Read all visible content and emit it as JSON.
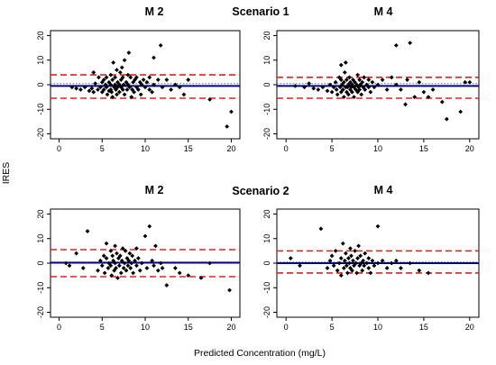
{
  "chart_data": {
    "type": "scatter",
    "ylabel": "IRES",
    "xlabel": "Predicted Concentration (mg/L)",
    "scenarios": [
      {
        "label": "Scenario 1"
      },
      {
        "label": "Scenario 2"
      }
    ],
    "panels": [
      {
        "title": "M 2",
        "scenario": 1,
        "xlim": [
          -1,
          21
        ],
        "ylim": [
          -22,
          22
        ],
        "xticks": [
          0,
          5,
          10,
          15,
          20
        ],
        "yticks": [
          -20,
          -10,
          0,
          10,
          20
        ],
        "lines": {
          "mean": -0.5,
          "upper_limit": 4.0,
          "lower_limit": -5.5,
          "reference": 0
        },
        "colors": {
          "points": "#000000",
          "mean": "#00008b",
          "limits": "#dd2222",
          "reference": "#4a6fd0"
        },
        "points": [
          [
            1.5,
            -1
          ],
          [
            2.0,
            -1.5
          ],
          [
            2.5,
            -2
          ],
          [
            3.0,
            -1
          ],
          [
            3.5,
            -2.5
          ],
          [
            3.8,
            -1.5
          ],
          [
            4.0,
            -3
          ],
          [
            4.2,
            0.5
          ],
          [
            4.5,
            -2
          ],
          [
            4.0,
            5
          ],
          [
            4.6,
            3
          ],
          [
            4.8,
            -1
          ],
          [
            5.0,
            1
          ],
          [
            5.0,
            -3
          ],
          [
            5.2,
            2
          ],
          [
            5.2,
            -2
          ],
          [
            5.4,
            0
          ],
          [
            5.5,
            -1
          ],
          [
            5.5,
            3
          ],
          [
            5.6,
            -4
          ],
          [
            5.8,
            -2.5
          ],
          [
            5.8,
            1
          ],
          [
            6.0,
            0
          ],
          [
            6.0,
            -2
          ],
          [
            6.0,
            4
          ],
          [
            6.1,
            -3
          ],
          [
            6.2,
            2
          ],
          [
            6.2,
            -5
          ],
          [
            6.3,
            9
          ],
          [
            6.4,
            -1
          ],
          [
            6.5,
            0
          ],
          [
            6.5,
            3
          ],
          [
            6.6,
            -2
          ],
          [
            6.7,
            6
          ],
          [
            6.7,
            -4
          ],
          [
            6.8,
            1
          ],
          [
            6.8,
            -1
          ],
          [
            7.0,
            -3
          ],
          [
            7.0,
            0
          ],
          [
            7.1,
            5
          ],
          [
            7.2,
            -1
          ],
          [
            7.2,
            2
          ],
          [
            7.3,
            7
          ],
          [
            7.4,
            -2
          ],
          [
            7.4,
            3
          ],
          [
            7.5,
            0
          ],
          [
            7.6,
            -4
          ],
          [
            7.6,
            10
          ],
          [
            7.8,
            1
          ],
          [
            7.9,
            -2
          ],
          [
            8.0,
            4
          ],
          [
            8.0,
            0
          ],
          [
            8.1,
            13
          ],
          [
            8.2,
            -1
          ],
          [
            8.3,
            3
          ],
          [
            8.4,
            -5
          ],
          [
            8.5,
            -2
          ],
          [
            8.6,
            1
          ],
          [
            8.7,
            -3
          ],
          [
            8.8,
            2
          ],
          [
            9.0,
            -1
          ],
          [
            9.0,
            3
          ],
          [
            9.2,
            -2
          ],
          [
            9.4,
            1
          ],
          [
            9.5,
            -4
          ],
          [
            9.6,
            0
          ],
          [
            9.8,
            2
          ],
          [
            10.0,
            -1
          ],
          [
            10.2,
            1
          ],
          [
            10.5,
            -2
          ],
          [
            10.5,
            3
          ],
          [
            10.8,
            -3
          ],
          [
            11.0,
            11
          ],
          [
            11.0,
            0
          ],
          [
            11.5,
            2
          ],
          [
            11.8,
            16
          ],
          [
            12.0,
            -1
          ],
          [
            12.5,
            2
          ],
          [
            13.0,
            -2
          ],
          [
            13.5,
            0
          ],
          [
            14.0,
            -1
          ],
          [
            14.5,
            -4
          ],
          [
            15.0,
            2
          ],
          [
            17.5,
            -6
          ],
          [
            19.5,
            -17
          ],
          [
            20.0,
            -11
          ]
        ]
      },
      {
        "title": "M 4",
        "scenario": 1,
        "xlim": [
          -1,
          21
        ],
        "ylim": [
          -22,
          22
        ],
        "xticks": [
          0,
          5,
          10,
          15,
          20
        ],
        "yticks": [
          -20,
          -10,
          0,
          10,
          20
        ],
        "lines": {
          "mean": -0.5,
          "upper_limit": 3.0,
          "lower_limit": -5.5,
          "reference": 0
        },
        "colors": {
          "points": "#000000",
          "mean": "#00008b",
          "limits": "#dd2222",
          "reference": "#4a6fd0"
        },
        "points": [
          [
            1.0,
            -0.5
          ],
          [
            2.0,
            -1
          ],
          [
            2.5,
            0.5
          ],
          [
            3.0,
            -1.5
          ],
          [
            3.5,
            -2
          ],
          [
            4.0,
            -1
          ],
          [
            4.5,
            -2.5
          ],
          [
            4.8,
            0
          ],
          [
            5.0,
            -3
          ],
          [
            5.2,
            -1
          ],
          [
            5.4,
            1
          ],
          [
            5.5,
            -2
          ],
          [
            5.6,
            -4
          ],
          [
            5.8,
            3
          ],
          [
            5.9,
            -1
          ],
          [
            6.0,
            2
          ],
          [
            6.0,
            -3
          ],
          [
            6.0,
            8
          ],
          [
            6.1,
            0
          ],
          [
            6.2,
            -2
          ],
          [
            6.3,
            -5
          ],
          [
            6.3,
            1
          ],
          [
            6.4,
            5
          ],
          [
            6.5,
            -1
          ],
          [
            6.5,
            9
          ],
          [
            6.6,
            -3
          ],
          [
            6.6,
            2
          ],
          [
            6.7,
            -1
          ],
          [
            6.8,
            0
          ],
          [
            6.8,
            -4
          ],
          [
            6.9,
            3
          ],
          [
            7.0,
            -2
          ],
          [
            7.0,
            1
          ],
          [
            7.1,
            -1
          ],
          [
            7.2,
            0
          ],
          [
            7.2,
            -3
          ],
          [
            7.3,
            2
          ],
          [
            7.4,
            -1
          ],
          [
            7.4,
            -5
          ],
          [
            7.5,
            1
          ],
          [
            7.6,
            -2
          ],
          [
            7.7,
            0
          ],
          [
            7.8,
            -3
          ],
          [
            7.8,
            4
          ],
          [
            7.9,
            -1
          ],
          [
            8.0,
            2
          ],
          [
            8.0,
            -2
          ],
          [
            8.1,
            0
          ],
          [
            8.2,
            -4
          ],
          [
            8.3,
            1
          ],
          [
            8.4,
            -1
          ],
          [
            8.5,
            3
          ],
          [
            8.6,
            -2
          ],
          [
            8.8,
            0
          ],
          [
            9.0,
            -1
          ],
          [
            9.0,
            2
          ],
          [
            9.2,
            -3
          ],
          [
            9.4,
            1
          ],
          [
            9.6,
            -1
          ],
          [
            10.0,
            0
          ],
          [
            10.5,
            2
          ],
          [
            11.0,
            -2
          ],
          [
            11.5,
            3
          ],
          [
            12.0,
            16
          ],
          [
            12.0,
            0
          ],
          [
            12.5,
            -2
          ],
          [
            13.0,
            -8
          ],
          [
            13.2,
            2
          ],
          [
            13.5,
            17
          ],
          [
            14.0,
            -5
          ],
          [
            14.5,
            1
          ],
          [
            15.0,
            -3
          ],
          [
            15.5,
            -5
          ],
          [
            16.0,
            -2
          ],
          [
            17.0,
            -7
          ],
          [
            17.5,
            -14
          ],
          [
            19.0,
            -11
          ],
          [
            19.5,
            1
          ],
          [
            20.0,
            1
          ]
        ]
      },
      {
        "title": "M 2",
        "scenario": 2,
        "xlim": [
          -1,
          21
        ],
        "ylim": [
          -22,
          22
        ],
        "xticks": [
          0,
          5,
          10,
          15,
          20
        ],
        "yticks": [
          -20,
          -10,
          0,
          10,
          20
        ],
        "lines": {
          "mean": 0.2,
          "upper_limit": 5.5,
          "lower_limit": -5.5,
          "reference": 0
        },
        "colors": {
          "points": "#000000",
          "mean": "#00008b",
          "limits": "#dd2222",
          "reference": "#4a6fd0"
        },
        "points": [
          [
            0.8,
            0
          ],
          [
            1.2,
            -1
          ],
          [
            2.0,
            4
          ],
          [
            2.8,
            -2
          ],
          [
            3.3,
            13
          ],
          [
            4.5,
            -3
          ],
          [
            4.8,
            1
          ],
          [
            5.0,
            -1
          ],
          [
            5.2,
            3
          ],
          [
            5.3,
            -4
          ],
          [
            5.5,
            2
          ],
          [
            5.5,
            8
          ],
          [
            5.7,
            -2
          ],
          [
            5.8,
            0
          ],
          [
            6.0,
            5
          ],
          [
            6.0,
            -1
          ],
          [
            6.1,
            -5
          ],
          [
            6.2,
            3
          ],
          [
            6.3,
            1
          ],
          [
            6.4,
            -3
          ],
          [
            6.5,
            7
          ],
          [
            6.5,
            0
          ],
          [
            6.6,
            -2
          ],
          [
            6.7,
            4
          ],
          [
            6.8,
            -6
          ],
          [
            6.9,
            2
          ],
          [
            7.0,
            -1
          ],
          [
            7.1,
            3
          ],
          [
            7.2,
            -4
          ],
          [
            7.3,
            1
          ],
          [
            7.4,
            6
          ],
          [
            7.5,
            -2
          ],
          [
            7.6,
            0
          ],
          [
            7.7,
            5
          ],
          [
            7.8,
            -3
          ],
          [
            7.9,
            2
          ],
          [
            8.0,
            -1
          ],
          [
            8.1,
            1
          ],
          [
            8.2,
            4
          ],
          [
            8.3,
            -2
          ],
          [
            8.4,
            0
          ],
          [
            8.5,
            3
          ],
          [
            8.6,
            -4
          ],
          [
            8.8,
            1
          ],
          [
            9.0,
            -1
          ],
          [
            9.0,
            6
          ],
          [
            9.2,
            2
          ],
          [
            9.4,
            -3
          ],
          [
            9.6,
            0
          ],
          [
            10.0,
            11
          ],
          [
            10.2,
            -2
          ],
          [
            10.5,
            15
          ],
          [
            10.8,
            1
          ],
          [
            11.0,
            -1
          ],
          [
            11.2,
            7
          ],
          [
            11.5,
            -3
          ],
          [
            11.8,
            0
          ],
          [
            12.0,
            -2
          ],
          [
            12.5,
            -9
          ],
          [
            13.5,
            -2
          ],
          [
            14.0,
            -4
          ],
          [
            15.0,
            -5
          ],
          [
            16.5,
            -6
          ],
          [
            17.5,
            0
          ],
          [
            19.8,
            -11
          ]
        ]
      },
      {
        "title": "M 4",
        "scenario": 2,
        "xlim": [
          -1,
          21
        ],
        "ylim": [
          -22,
          22
        ],
        "xticks": [
          0,
          5,
          10,
          15,
          20
        ],
        "yticks": [
          -20,
          -10,
          0,
          10,
          20
        ],
        "lines": {
          "mean": 0.0,
          "upper_limit": 5.0,
          "lower_limit": -4.0,
          "reference": 0
        },
        "colors": {
          "points": "#000000",
          "mean": "#00008b",
          "limits": "#dd2222",
          "reference": "#4a6fd0"
        },
        "points": [
          [
            0.5,
            2
          ],
          [
            1.5,
            -1
          ],
          [
            3.8,
            14
          ],
          [
            4.5,
            -2
          ],
          [
            4.8,
            1
          ],
          [
            5.0,
            3
          ],
          [
            5.2,
            -1
          ],
          [
            5.4,
            5
          ],
          [
            5.6,
            -3
          ],
          [
            5.8,
            0
          ],
          [
            6.0,
            2
          ],
          [
            6.0,
            -5
          ],
          [
            6.2,
            8
          ],
          [
            6.3,
            -2
          ],
          [
            6.4,
            1
          ],
          [
            6.5,
            4
          ],
          [
            6.6,
            -1
          ],
          [
            6.7,
            -4
          ],
          [
            6.8,
            2
          ],
          [
            6.9,
            0
          ],
          [
            7.0,
            6
          ],
          [
            7.0,
            -2
          ],
          [
            7.1,
            3
          ],
          [
            7.2,
            -3
          ],
          [
            7.3,
            1
          ],
          [
            7.4,
            -1
          ],
          [
            7.5,
            5
          ],
          [
            7.6,
            0
          ],
          [
            7.7,
            -4
          ],
          [
            7.8,
            2
          ],
          [
            7.9,
            7
          ],
          [
            8.0,
            -1
          ],
          [
            8.1,
            3
          ],
          [
            8.2,
            0
          ],
          [
            8.3,
            -3
          ],
          [
            8.4,
            1
          ],
          [
            8.5,
            -1
          ],
          [
            8.6,
            4
          ],
          [
            8.8,
            0
          ],
          [
            9.0,
            -2
          ],
          [
            9.0,
            2
          ],
          [
            9.2,
            -4
          ],
          [
            9.4,
            1
          ],
          [
            9.6,
            -1
          ],
          [
            10.0,
            15
          ],
          [
            10.0,
            0
          ],
          [
            10.5,
            1
          ],
          [
            11.0,
            -2
          ],
          [
            11.5,
            0
          ],
          [
            12.0,
            1
          ],
          [
            12.5,
            -2
          ],
          [
            13.5,
            0
          ],
          [
            14.5,
            -3
          ],
          [
            15.5,
            -4
          ]
        ]
      }
    ]
  }
}
